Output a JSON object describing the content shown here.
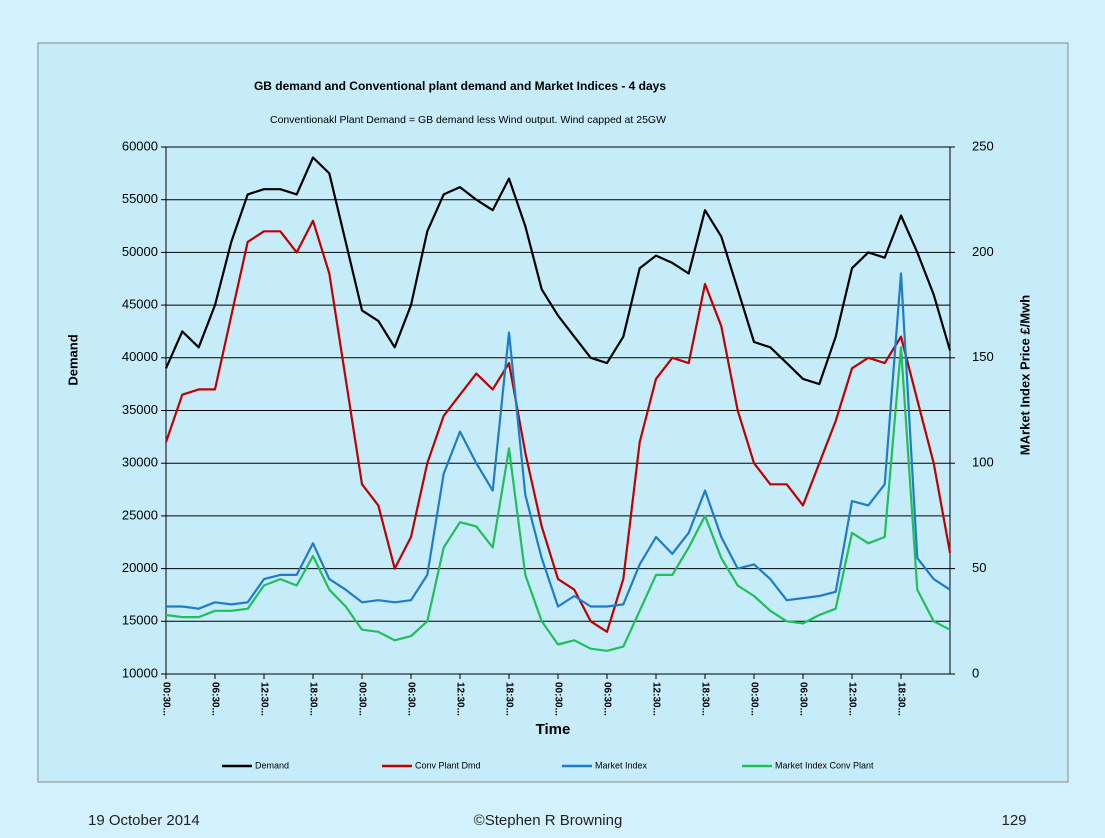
{
  "chart_data": {
    "type": "line",
    "title": "GB demand and Conventional plant demand and Market Indices - 4 days",
    "subtitle": "Conventionakl Plant Demand = GB demand less Wind output. Wind capped at 25GW",
    "x_label": "Time",
    "y_label": "Demand",
    "y2_label": "MArket Index Price £/Mwh",
    "categories": [
      "00:30...",
      null,
      null,
      "06:30...",
      null,
      null,
      "12:30...",
      null,
      null,
      "18:30...",
      null,
      null,
      "00:30...",
      null,
      null,
      "06:30...",
      null,
      null,
      "12:30...",
      null,
      null,
      "18:30...",
      null,
      null,
      "00:30...",
      null,
      null,
      "06:30...",
      null,
      null,
      "12:30...",
      null,
      null,
      "18:30...",
      null,
      null,
      "00:30...",
      null,
      null,
      "06:30...",
      null,
      null,
      "12:30...",
      null,
      null,
      "18:30...",
      null,
      null,
      null
    ],
    "ylim": [
      10000,
      60000
    ],
    "yticks": [
      10000,
      15000,
      20000,
      25000,
      30000,
      35000,
      40000,
      45000,
      50000,
      55000,
      60000
    ],
    "y2lim": [
      0,
      250
    ],
    "y2ticks": [
      0,
      50,
      100,
      150,
      200,
      250
    ],
    "grid": true,
    "legend": "bottom",
    "series": [
      {
        "name": "Demand",
        "color": "#000000",
        "values": [
          39000,
          42500,
          41000,
          45000,
          51000,
          55500,
          56000,
          56000,
          55500,
          59000,
          57500,
          51000,
          44500,
          43500,
          41000,
          45000,
          52000,
          55500,
          56200,
          55000,
          54000,
          57000,
          52500,
          46500,
          44000,
          42000,
          40000,
          39500,
          42000,
          48500,
          49700,
          49000,
          48000,
          54000,
          51500,
          46500,
          41500,
          41000,
          39500,
          38000,
          37500,
          42000,
          48500,
          50000,
          49500,
          53500,
          50000,
          46000,
          40700
        ]
      },
      {
        "name": "Conv Plant Dmd",
        "color": "#c00000",
        "values": [
          32000,
          36500,
          37000,
          37000,
          44000,
          51000,
          52000,
          52000,
          50000,
          53000,
          48000,
          38000,
          28000,
          26000,
          20000,
          23000,
          30000,
          34500,
          36500,
          38500,
          37000,
          39500,
          31000,
          24000,
          19000,
          18000,
          15000,
          14000,
          19000,
          32000,
          38000,
          40000,
          39500,
          47000,
          43000,
          35000,
          30000,
          28000,
          28000,
          26000,
          30000,
          34000,
          39000,
          40000,
          39500,
          42000,
          36000,
          30000,
          21500
        ]
      },
      {
        "name": "Market Index",
        "color": "#1f7dc8",
        "axis": "y2",
        "values": [
          32,
          32,
          31,
          34,
          33,
          34,
          45,
          47,
          47,
          62,
          45,
          40,
          34,
          35,
          34,
          35,
          47,
          95,
          115,
          100,
          87,
          162,
          85,
          55,
          32,
          37,
          32,
          32,
          33,
          52,
          65,
          57,
          67,
          87,
          65,
          50,
          52,
          45,
          35,
          36,
          37,
          39,
          82,
          80,
          90,
          190,
          55,
          45,
          40
        ]
      },
      {
        "name": "Market Index Conv Plant",
        "color": "#1fbf5a",
        "axis": "y2",
        "values": [
          28,
          27,
          27,
          30,
          30,
          31,
          42,
          45,
          42,
          56,
          40,
          32,
          21,
          20,
          16,
          18,
          25,
          60,
          72,
          70,
          60,
          107,
          47,
          25,
          14,
          16,
          12,
          11,
          13,
          30,
          47,
          47,
          60,
          75,
          55,
          42,
          37,
          30,
          25,
          24,
          28,
          31,
          67,
          62,
          65,
          155,
          40,
          25,
          21
        ]
      }
    ]
  },
  "footer": {
    "date": "19 October 2014",
    "author": "©Stephen R Browning",
    "page": "129"
  }
}
